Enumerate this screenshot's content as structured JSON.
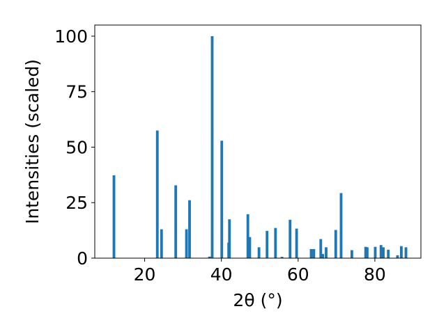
{
  "chart_data": {
    "type": "bar",
    "xlabel": "2θ (°)",
    "ylabel": "Intensities (scaled)",
    "xlim": [
      7,
      92
    ],
    "ylim": [
      0,
      105
    ],
    "xticks": [
      20,
      40,
      60,
      80
    ],
    "yticks": [
      0,
      25,
      50,
      75,
      100
    ],
    "xtick_labels": [
      "20",
      "40",
      "60",
      "80"
    ],
    "ytick_labels": [
      "0",
      "25",
      "50",
      "75",
      "100"
    ],
    "grid": false,
    "legend": "none",
    "bar_color": "#1f77b4",
    "bar_width": 0.7,
    "x": [
      12.0,
      23.3,
      24.4,
      28.1,
      30.9,
      31.7,
      36.9,
      37.6,
      40.1,
      41.9,
      42.1,
      46.9,
      47.4,
      49.8,
      51.9,
      54.1,
      55.8,
      57.9,
      59.6,
      63.4,
      64.1,
      65.9,
      66.4,
      67.3,
      69.8,
      71.2,
      74.0,
      77.6,
      78.0,
      80.1,
      81.6,
      82.2,
      83.5,
      85.9,
      86.9,
      88.1
    ],
    "values": [
      37.3,
      57.5,
      13.0,
      32.8,
      13.0,
      26.1,
      0.7,
      100.0,
      52.9,
      7.0,
      17.5,
      19.8,
      9.5,
      4.9,
      12.3,
      13.6,
      0.6,
      17.3,
      13.3,
      4.1,
      4.1,
      8.6,
      1.9,
      4.9,
      12.7,
      29.3,
      3.6,
      5.1,
      4.9,
      5.1,
      5.9,
      4.9,
      3.8,
      1.3,
      5.4,
      4.9
    ]
  }
}
